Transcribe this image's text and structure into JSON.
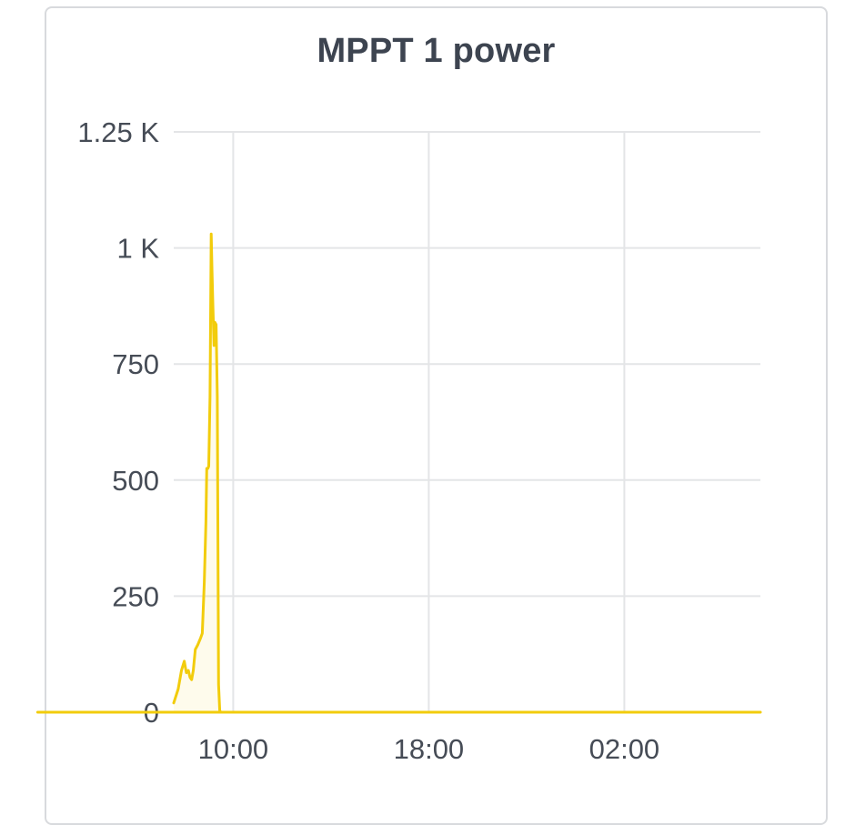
{
  "panel": {
    "title": "MPPT 1 power"
  },
  "colors": {
    "series": "#f2cc0c",
    "grid": "#e4e5e7",
    "text": "#464c56",
    "title": "#3d4450"
  },
  "chart_data": {
    "type": "area",
    "title": "MPPT 1 power",
    "xlabel": "",
    "ylabel": "",
    "ylim": [
      0,
      1250
    ],
    "yticks": [
      {
        "value": 0,
        "label": "0"
      },
      {
        "value": 250,
        "label": "250"
      },
      {
        "value": 500,
        "label": "500"
      },
      {
        "value": 750,
        "label": "750"
      },
      {
        "value": 1000,
        "label": "1 K"
      },
      {
        "value": 1250,
        "label": "1.25 K"
      }
    ],
    "xlim": [
      "07:34",
      "07:34+1d"
    ],
    "xticks": [
      {
        "value": "10:00",
        "label": "10:00"
      },
      {
        "value": "18:00",
        "label": "18:00"
      },
      {
        "value": "02:00",
        "label": "02:00"
      }
    ],
    "grid": true,
    "legend": "none",
    "series": [
      {
        "color": "#f2cc0c",
        "points": [
          [
            "07:34",
            20
          ],
          [
            "07:45",
            50
          ],
          [
            "07:53",
            90
          ],
          [
            "08:00",
            110
          ],
          [
            "08:05",
            85
          ],
          [
            "08:10",
            90
          ],
          [
            "08:14",
            75
          ],
          [
            "08:18",
            70
          ],
          [
            "08:22",
            90
          ],
          [
            "08:27",
            135
          ],
          [
            "08:33",
            145
          ],
          [
            "08:40",
            160
          ],
          [
            "08:44",
            170
          ],
          [
            "08:49",
            280
          ],
          [
            "08:53",
            410
          ],
          [
            "08:55",
            525
          ],
          [
            "08:58",
            525
          ],
          [
            "09:00",
            530
          ],
          [
            "09:03",
            680
          ],
          [
            "09:06",
            1030
          ],
          [
            "09:08",
            950
          ],
          [
            "09:10",
            880
          ],
          [
            "09:13",
            790
          ],
          [
            "09:15",
            840
          ],
          [
            "09:18",
            835
          ],
          [
            "09:21",
            680
          ],
          [
            "09:24",
            60
          ],
          [
            "09:27",
            3
          ],
          [
            "09:30",
            0
          ],
          [
            "12:00",
            0
          ],
          [
            "18:00",
            0
          ],
          [
            "02:00",
            0
          ],
          [
            "07:34+1d",
            0
          ]
        ]
      }
    ]
  }
}
